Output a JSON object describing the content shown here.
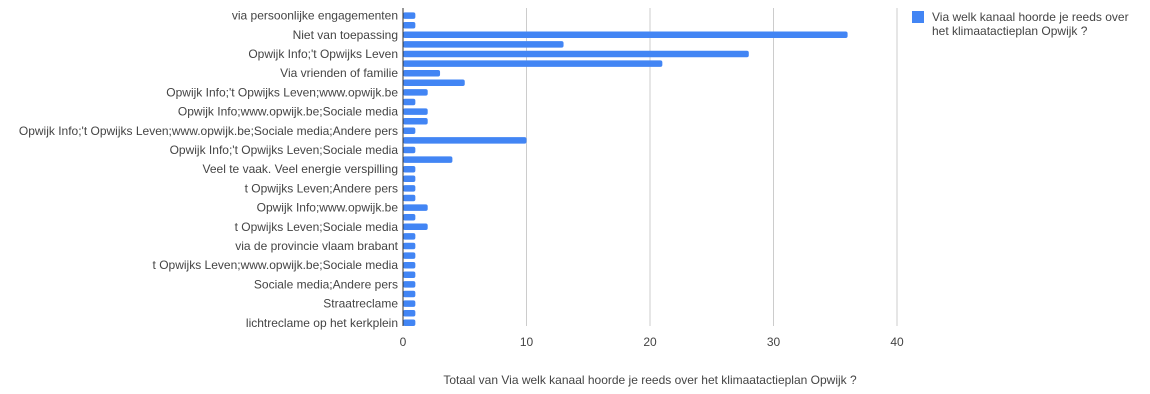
{
  "chart_data": {
    "type": "bar",
    "orientation": "horizontal",
    "xlabel": "Totaal van Via welk kanaal hoorde je reeds over het klimaatactieplan Opwijk ?",
    "xlim": [
      0,
      40
    ],
    "xticks": [
      0,
      10,
      20,
      30,
      40
    ],
    "grid": true,
    "legend_position": "right",
    "bar_color": "#4285f4",
    "series": [
      {
        "name": "Via welk kanaal hoorde je reeds over het klimaatactieplan Opwijk ?",
        "values": [
          1,
          1,
          36,
          13,
          28,
          21,
          3,
          5,
          2,
          1,
          2,
          2,
          1,
          10,
          1,
          4,
          1,
          1,
          1,
          1,
          2,
          1,
          2,
          1,
          1,
          1,
          1,
          1,
          1,
          1,
          1,
          1,
          1
        ]
      }
    ],
    "categories": [
      "via persoonlijke engagementen",
      "",
      "Niet van toepassing",
      "",
      "Opwijk Info;'t Opwijks Leven",
      "",
      "Via vrienden of familie",
      "",
      "Opwijk Info;'t Opwijks Leven;www.opwijk.be",
      "",
      "Opwijk Info;www.opwijk.be;Sociale media",
      "",
      "Opwijk Info;'t Opwijks Leven;www.opwijk.be;Sociale media;Andere pers",
      "",
      "Opwijk Info;'t Opwijks Leven;Sociale media",
      "",
      "Veel te vaak. Veel energie verspilling",
      "",
      "t Opwijks Leven;Andere pers",
      "",
      "Opwijk Info;www.opwijk.be",
      "",
      "t Opwijks Leven;Sociale media",
      "",
      "via de provincie vlaam brabant",
      "",
      "t Opwijks Leven;www.opwijk.be;Sociale media",
      "",
      "Sociale media;Andere pers",
      "",
      "Straatreclame",
      "",
      "lichtreclame op het kerkplein"
    ]
  },
  "legend": {
    "line1": "Via welk kanaal hoorde je reeds over",
    "line2": "het klimaatactieplan Opwijk ?"
  }
}
